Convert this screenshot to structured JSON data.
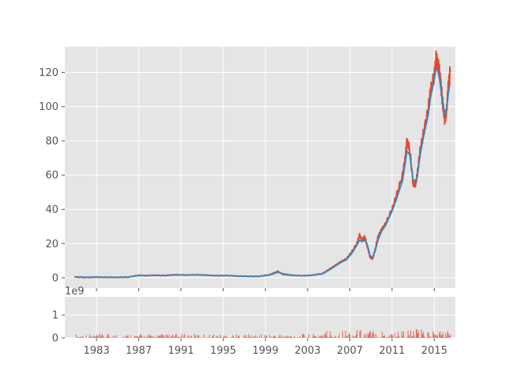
{
  "chart_data": [
    {
      "type": "line",
      "title": "",
      "xlabel": "",
      "ylabel": "",
      "ylim": [
        -6,
        135
      ],
      "xlim": [
        "1980-01-01",
        "2017-01-01"
      ],
      "grid": true,
      "style": "ggplot",
      "xtick_labels": [
        "1983",
        "1987",
        "1991",
        "1995",
        "1999",
        "2003",
        "2007",
        "2011",
        "2015"
      ],
      "ytick_labels": [
        "0",
        "20",
        "40",
        "60",
        "80",
        "100",
        "120"
      ],
      "ytick_values": [
        0,
        20,
        40,
        60,
        80,
        100,
        120
      ],
      "series": [
        {
          "color": "#E24A33",
          "x": [
            "1980-12",
            "1982-01",
            "1983-01",
            "1984-01",
            "1985-01",
            "1986-01",
            "1987-01",
            "1987-10",
            "1988-06",
            "1989-06",
            "1990-06",
            "1991-06",
            "1992-06",
            "1993-06",
            "1994-06",
            "1995-06",
            "1996-06",
            "1997-06",
            "1998-06",
            "1999-06",
            "2000-03",
            "2000-09",
            "2001-06",
            "2002-06",
            "2003-06",
            "2004-06",
            "2005-03",
            "2005-09",
            "2006-03",
            "2006-09",
            "2007-03",
            "2007-09",
            "2007-12",
            "2008-03",
            "2008-06",
            "2008-09",
            "2008-12",
            "2009-03",
            "2009-06",
            "2009-09",
            "2010-01",
            "2010-06",
            "2011-01",
            "2011-06",
            "2012-01",
            "2012-04",
            "2012-06",
            "2012-09",
            "2013-01",
            "2013-04",
            "2013-06",
            "2013-09",
            "2014-01",
            "2014-06",
            "2014-09",
            "2015-01",
            "2015-03",
            "2015-05",
            "2015-07",
            "2015-09",
            "2015-11",
            "2016-01",
            "2016-03",
            "2016-05",
            "2016-07"
          ],
          "values": [
            0.5,
            0.2,
            0.4,
            0.3,
            0.3,
            0.4,
            1.5,
            1.2,
            1.5,
            1.3,
            1.8,
            1.6,
            1.8,
            1.5,
            1.2,
            1.3,
            0.9,
            0.8,
            0.8,
            1.8,
            3.8,
            2.0,
            1.5,
            1.2,
            1.5,
            2.5,
            5.5,
            7.5,
            9.5,
            11,
            15,
            20,
            25,
            22,
            24,
            18,
            12,
            11,
            17,
            24,
            28,
            32,
            40,
            48,
            60,
            70,
            80,
            75,
            55,
            55,
            62,
            75,
            85,
            98,
            110,
            118,
            128,
            125,
            120,
            110,
            100,
            92,
            98,
            112,
            120
          ]
        },
        {
          "color": "#348ABD",
          "x": [
            "1980-12",
            "1982-01",
            "1983-01",
            "1984-01",
            "1985-01",
            "1986-01",
            "1987-01",
            "1987-10",
            "1988-06",
            "1989-06",
            "1990-06",
            "1991-06",
            "1992-06",
            "1993-06",
            "1994-06",
            "1995-06",
            "1996-06",
            "1997-06",
            "1998-06",
            "1999-06",
            "2000-03",
            "2000-09",
            "2001-06",
            "2002-06",
            "2003-06",
            "2004-06",
            "2005-03",
            "2005-09",
            "2006-03",
            "2006-09",
            "2007-03",
            "2007-09",
            "2007-12",
            "2008-03",
            "2008-06",
            "2008-09",
            "2008-12",
            "2009-03",
            "2009-06",
            "2009-09",
            "2010-01",
            "2010-06",
            "2011-01",
            "2011-06",
            "2012-01",
            "2012-04",
            "2012-06",
            "2012-09",
            "2013-01",
            "2013-04",
            "2013-06",
            "2013-09",
            "2014-01",
            "2014-06",
            "2014-09",
            "2015-01",
            "2015-03",
            "2015-05",
            "2015-07",
            "2015-09",
            "2015-11",
            "2016-01",
            "2016-03",
            "2016-05",
            "2016-07"
          ],
          "values": [
            0.5,
            0.3,
            0.4,
            0.3,
            0.3,
            0.4,
            1.3,
            1.3,
            1.4,
            1.3,
            1.6,
            1.6,
            1.7,
            1.5,
            1.3,
            1.3,
            1.0,
            0.8,
            0.9,
            1.6,
            3.2,
            2.4,
            1.6,
            1.2,
            1.4,
            2.3,
            5.0,
            7.0,
            9.0,
            10.5,
            14,
            19,
            22,
            21,
            22,
            19,
            13,
            12,
            16,
            22,
            27,
            31,
            39,
            46,
            57,
            67,
            74,
            72,
            57,
            56,
            60,
            72,
            83,
            95,
            106,
            116,
            122,
            121,
            116,
            108,
            100,
            95,
            98,
            108,
            114
          ]
        }
      ]
    },
    {
      "type": "bar",
      "title": "",
      "xlabel": "",
      "ylabel": "",
      "offset_label": "1e9",
      "ylim": [
        0,
        1.8
      ],
      "grid": true,
      "ytick_labels": [
        "0",
        "1"
      ],
      "ytick_values": [
        0,
        1
      ],
      "color": "#E24A33",
      "note": "daily volume, small spikes mostly below 0.4e9",
      "x_start": "1981-01-01",
      "x_end": "2016-06-30",
      "peak_value": 0.4
    }
  ]
}
